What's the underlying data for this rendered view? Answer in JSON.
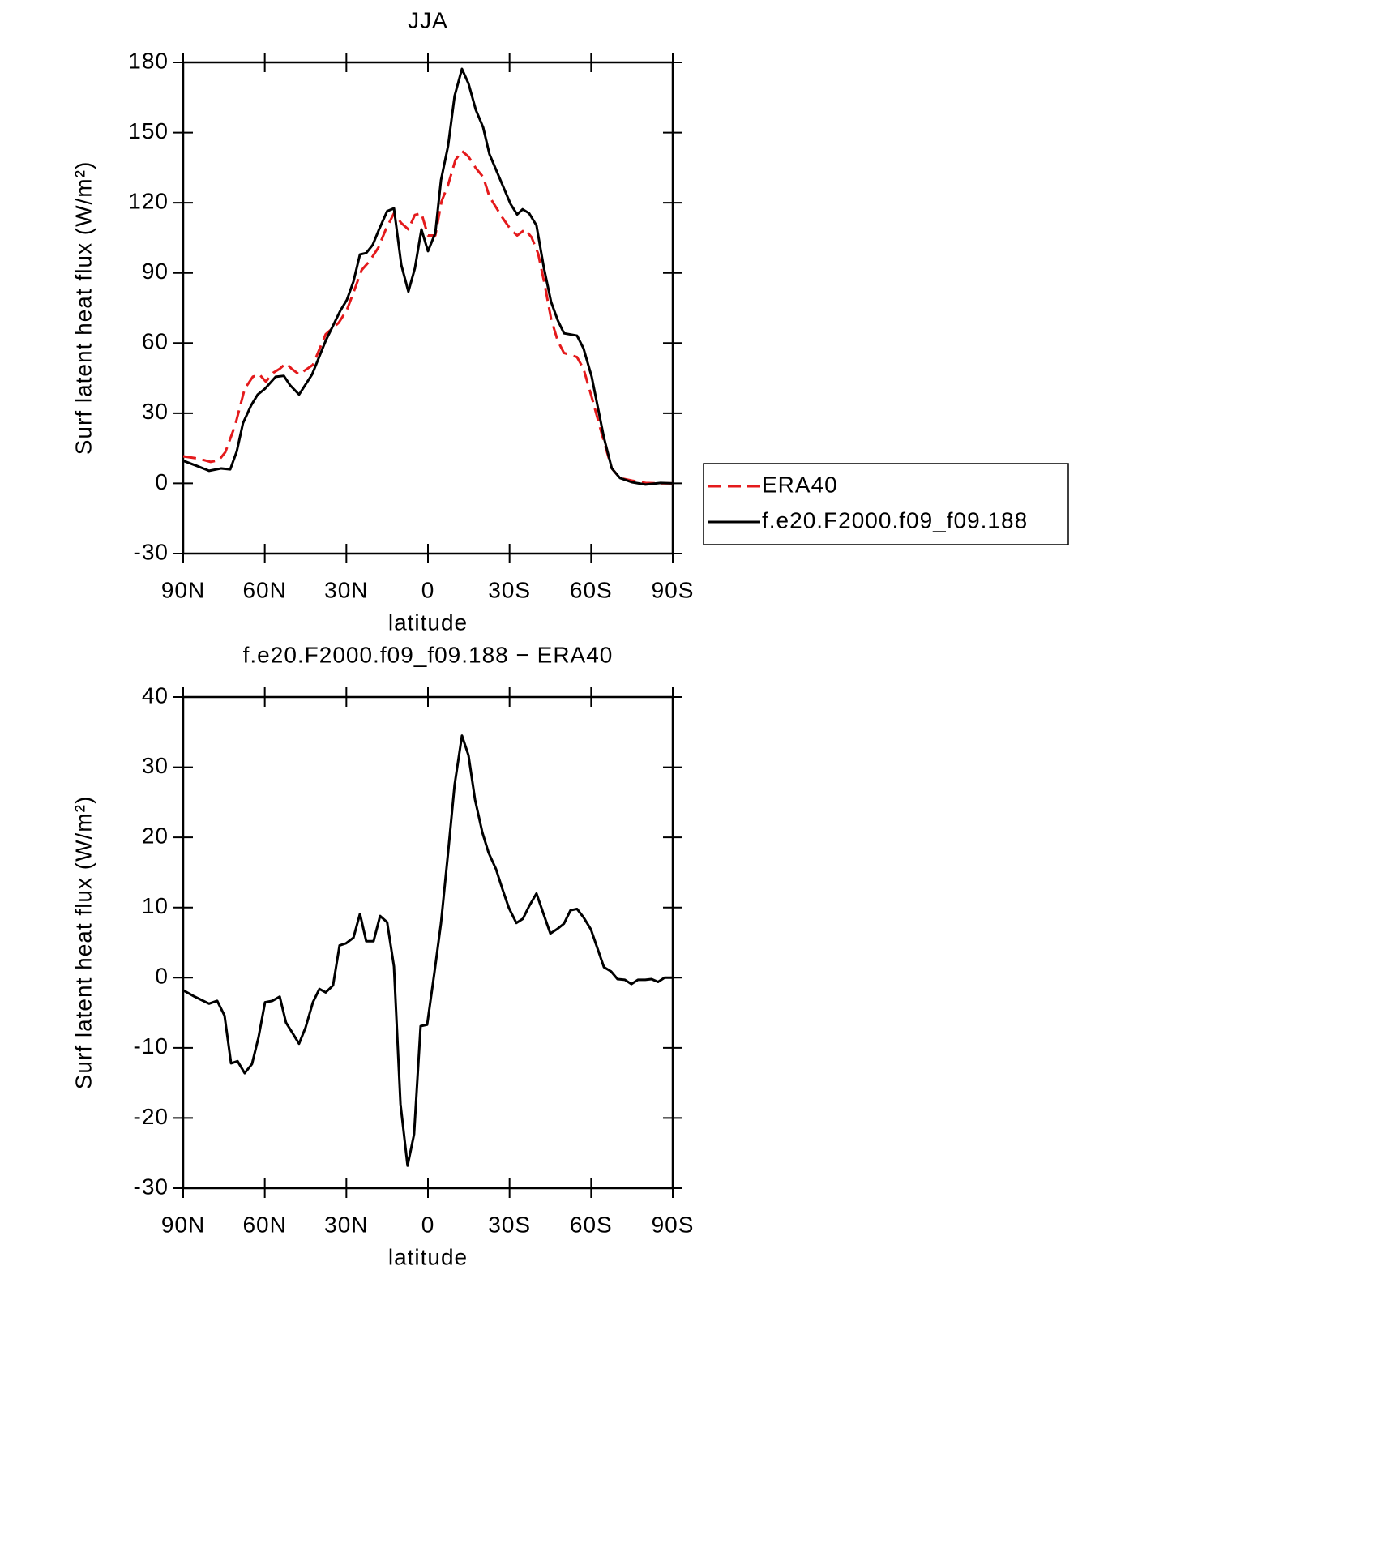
{
  "chart_data": [
    {
      "type": "line",
      "title": "JJA",
      "xlabel": "latitude",
      "ylabel": "Surf latent heat flux (W/m²)",
      "xlim": [
        90,
        -90
      ],
      "ylim": [
        -30,
        180
      ],
      "xticks": [
        {
          "value": 90,
          "label": "90N"
        },
        {
          "value": 60,
          "label": "60N"
        },
        {
          "value": 30,
          "label": "30N"
        },
        0,
        {
          "value": -30,
          "label": "30S"
        },
        {
          "value": -60,
          "label": "60S"
        },
        {
          "value": -90,
          "label": "90S"
        }
      ],
      "yticks": [
        -30,
        0,
        30,
        60,
        90,
        120,
        150,
        180
      ],
      "legend": "right",
      "series": [
        {
          "name": "ERA40",
          "color": "#e41a1c",
          "dashed": true,
          "x": [
            90,
            84.3,
            79.9,
            76.9,
            74.5,
            70.9,
            67.4,
            64.4,
            62,
            59.6,
            56.9,
            54.5,
            52.2,
            50.1,
            47.4,
            42.3,
            37.6,
            32.8,
            29.8,
            27.1,
            24.4,
            21.5,
            18.2,
            15.5,
            12.5,
            9.8,
            7.2,
            4.8,
            2.4,
            0,
            -2.7,
            -5,
            -7.4,
            -10.1,
            -12.5,
            -14.9,
            -17.6,
            -20.3,
            -22.6,
            -27.4,
            -30.4,
            -32.8,
            -35.7,
            -38.1,
            -40.5,
            -42.9,
            -45.3,
            -47.7,
            -50,
            -54.8,
            -57.2,
            -60.2,
            -64.7,
            -67.6,
            -70.6,
            -75,
            -80,
            -85.5,
            -90
          ],
          "values": [
            11.6,
            10.6,
            9.2,
            9.9,
            13.4,
            24.8,
            40.4,
            45.6,
            46.6,
            43.5,
            47.3,
            49,
            51.4,
            49,
            46.6,
            50.7,
            63.8,
            68.7,
            74.2,
            82.5,
            91.2,
            95,
            100.9,
            108.6,
            115.5,
            111.3,
            108.6,
            114.8,
            115.5,
            106,
            106,
            120.6,
            127.6,
            138.3,
            142.1,
            139.7,
            134.8,
            131,
            122.6,
            113.6,
            108.6,
            106,
            108.6,
            105.2,
            98.3,
            85.1,
            70.2,
            61,
            55.8,
            54,
            49,
            36.9,
            17.9,
            6.4,
            2.3,
            1.2,
            0.2,
            0,
            0
          ]
        },
        {
          "name": "f.e20.F2000.f09_f09.188",
          "color": "#000000",
          "dashed": false,
          "x": [
            90,
            85,
            80.5,
            76,
            72.7,
            70.3,
            68,
            65,
            62.6,
            60,
            56,
            53,
            50.7,
            47.4,
            42.6,
            37.6,
            32.2,
            29.8,
            27.4,
            25,
            22.7,
            20.3,
            18.2,
            15,
            12.5,
            9.8,
            7.2,
            4.8,
            2.4,
            0,
            -2.7,
            -4.8,
            -7.4,
            -9.8,
            -12.5,
            -14.9,
            -17.6,
            -20.3,
            -22.6,
            -27.4,
            -30.4,
            -32.8,
            -34.8,
            -37.2,
            -39.9,
            -42.6,
            -45.3,
            -47.7,
            -50,
            -54.8,
            -57.2,
            -60.2,
            -64.7,
            -67.6,
            -70.6,
            -75,
            -80,
            -85.5,
            -90
          ],
          "values": [
            9.7,
            7.5,
            5.4,
            6.4,
            6,
            13.7,
            25.8,
            33.4,
            38,
            40.4,
            45.6,
            46,
            42,
            38,
            46.6,
            61,
            73.9,
            78.5,
            86.3,
            97.9,
            98.5,
            102,
            108,
            116.4,
            117.6,
            93.4,
            82,
            92,
            108.6,
            99.3,
            107,
            129.7,
            144.3,
            165.7,
            177.2,
            171,
            159.7,
            152.2,
            140.8,
            127.6,
            119.4,
            115,
            117.2,
            115.5,
            110.3,
            92.3,
            77.5,
            69.8,
            64.2,
            63.2,
            57.7,
            45.6,
            19.6,
            6.4,
            2.3,
            0.5,
            -0.5,
            0.2,
            0
          ]
        }
      ]
    },
    {
      "type": "line",
      "title": "f.e20.F2000.f09_f09.188 − ERA40",
      "xlabel": "latitude",
      "ylabel": "Surf latent heat flux (W/m²)",
      "xlim": [
        90,
        -90
      ],
      "ylim": [
        -30,
        40
      ],
      "xticks": [
        {
          "value": 90,
          "label": "90N"
        },
        {
          "value": 60,
          "label": "60N"
        },
        {
          "value": 30,
          "label": "30N"
        },
        0,
        {
          "value": -30,
          "label": "30S"
        },
        {
          "value": -60,
          "label": "60S"
        },
        {
          "value": -90,
          "label": "90S"
        }
      ],
      "yticks": [
        -30,
        -20,
        -10,
        0,
        10,
        20,
        30,
        40
      ],
      "series": [
        {
          "color": "#000000",
          "dashed": false,
          "x": [
            90,
            85.8,
            80.5,
            77.5,
            74.8,
            72.4,
            70,
            67.4,
            64.7,
            62.3,
            59.9,
            57.2,
            54.5,
            52.2,
            50.1,
            47.4,
            45,
            42.3,
            39.9,
            37.6,
            34.9,
            32.5,
            30.1,
            27.4,
            25,
            22.7,
            20,
            17.6,
            15,
            12.5,
            10.1,
            7.5,
            5.1,
            2.7,
            0.3,
            -2.4,
            -4.8,
            -7.4,
            -9.8,
            -12.5,
            -14.9,
            -17.3,
            -20,
            -22.3,
            -25,
            -27.4,
            -29.8,
            -32.5,
            -34.9,
            -37.2,
            -39.9,
            -42.3,
            -45,
            -47.4,
            -50,
            -52.4,
            -54.8,
            -57.2,
            -59.9,
            -62.3,
            -64.7,
            -67.3,
            -69.7,
            -72.4,
            -74.8,
            -77.2,
            -79.9,
            -82.2,
            -84.6,
            -87,
            -90
          ],
          "values": [
            -1.8,
            -2.7,
            -3.7,
            -3.3,
            -5.4,
            -12.2,
            -11.9,
            -13.6,
            -12.3,
            -8.5,
            -3.5,
            -3.3,
            -2.7,
            -6.4,
            -7.7,
            -9.4,
            -7.1,
            -3.5,
            -1.6,
            -2.1,
            -1.1,
            4.6,
            4.9,
            5.7,
            9.1,
            5.2,
            5.2,
            8.8,
            7.9,
            1.6,
            -18,
            -26.8,
            -22.3,
            -6.9,
            -6.7,
            0.8,
            7.8,
            17.8,
            27.5,
            34.5,
            31.7,
            25.4,
            20.7,
            17.8,
            15.5,
            12.6,
            9.9,
            7.8,
            8.4,
            10.2,
            12,
            9.3,
            6.3,
            6.9,
            7.7,
            9.6,
            9.8,
            8.6,
            6.9,
            4.2,
            1.5,
            0.9,
            -0.2,
            -0.3,
            -0.9,
            -0.3,
            -0.3,
            -0.2,
            -0.6,
            0,
            0
          ]
        }
      ]
    }
  ]
}
